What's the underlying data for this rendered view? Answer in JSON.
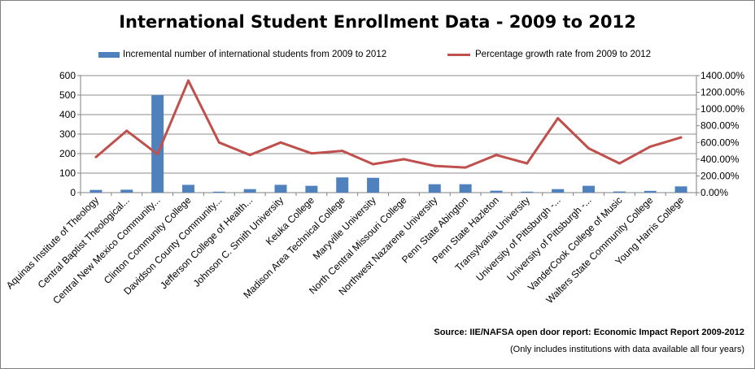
{
  "title": "International Student Enrollment Data - 2009 to 2012",
  "chart_data": {
    "type": "bar",
    "combo": "bar+line (secondary axis)",
    "title": "International Student Enrollment Data - 2009 to 2012",
    "categories": [
      "Aquinas Institute of Theology",
      "Central Baptist Theological...",
      "Central New Mexico Community...",
      "Clinton Community College",
      "Davidson County Community...",
      "Jefferson College of Health...",
      "Johnson C. Smith University",
      "Keuka College",
      "Madison Area Technical College",
      "Maryville University",
      "North Central Missouri College",
      "Northwest Nazarene University",
      "Penn State Abington",
      "Penn State Hazleton",
      "Transylvania University",
      "University of Pittsburgh -...",
      "University of Pittsburgh -...",
      "VanderCook College of Music",
      "Walters State Community College",
      "Young Harris College"
    ],
    "series": [
      {
        "name": "Incremental number of international students from 2009 to 2012",
        "type": "bar",
        "axis": "left",
        "color": "#4F81BD",
        "values": [
          14,
          15,
          500,
          40,
          5,
          18,
          40,
          35,
          78,
          76,
          0,
          43,
          43,
          10,
          5,
          18,
          35,
          6,
          9,
          32
        ]
      },
      {
        "name": "Percentage growth rate from 2009 to 2012",
        "type": "line",
        "axis": "right",
        "color": "#C0504D",
        "values": [
          425,
          740,
          460,
          1340,
          600,
          450,
          600,
          470,
          500,
          340,
          400,
          320,
          300,
          450,
          350,
          890,
          530,
          350,
          550,
          660
        ]
      }
    ],
    "ylim": [
      0,
      600
    ],
    "yticks": [
      "0",
      "100",
      "200",
      "300",
      "400",
      "500",
      "600"
    ],
    "y2lim": [
      0,
      1400
    ],
    "y2ticks": [
      "0.00%",
      "200.00%",
      "400.00%",
      "600.00%",
      "800.00%",
      "1000.00%",
      "1200.00%",
      "1400.00%"
    ],
    "grid": true,
    "legend_position": "top"
  },
  "source": "Source:  IIE/NAFSA  open door report: Economic Impact Report 2009-2012",
  "footnote": "(Only includes institutions with data available all four years)"
}
